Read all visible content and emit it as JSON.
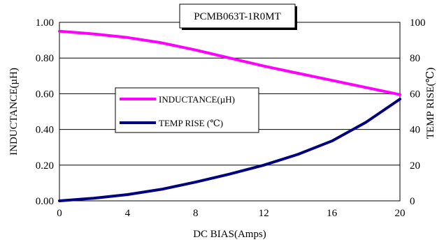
{
  "chart_data": {
    "type": "line",
    "title": "PCMB063T-1R0MT",
    "xlabel": "DC BIAS(Amps)",
    "ylabel": "INDUCTANCE(µH)",
    "y2label": "TEMP RISE(℃)",
    "xlim": [
      0,
      20
    ],
    "ylim": [
      0,
      1.0
    ],
    "y2lim": [
      0,
      100
    ],
    "xticks": [
      "0",
      "4",
      "8",
      "12",
      "16",
      "20"
    ],
    "xtick_values": [
      0,
      4,
      8,
      12,
      16,
      20
    ],
    "yticks": [
      "0.00",
      "0.20",
      "0.40",
      "0.60",
      "0.80",
      "1.00"
    ],
    "ytick_values": [
      0,
      0.2,
      0.4,
      0.6,
      0.8,
      1.0
    ],
    "y2ticks": [
      "0",
      "20",
      "40",
      "60",
      "80",
      "100"
    ],
    "y2tick_values": [
      0,
      20,
      40,
      60,
      80,
      100
    ],
    "grid": "horizontal",
    "legend_position": "center-left",
    "series": [
      {
        "name": "INDUCTANCE(µH)",
        "axis": "left",
        "color": "#ff00ff",
        "x": [
          0,
          2,
          4,
          6,
          8,
          10,
          12,
          14,
          16,
          18,
          20
        ],
        "values": [
          0.95,
          0.935,
          0.915,
          0.885,
          0.845,
          0.8,
          0.755,
          0.715,
          0.675,
          0.635,
          0.595
        ]
      },
      {
        "name": "TEMP RISE (℃)",
        "axis": "right",
        "color": "#000080",
        "x": [
          0,
          2,
          4,
          6,
          8,
          10,
          12,
          14,
          16,
          18,
          20
        ],
        "values": [
          0,
          1.5,
          3.5,
          6.5,
          10.5,
          15,
          20,
          26,
          33.5,
          44,
          57
        ]
      }
    ]
  }
}
